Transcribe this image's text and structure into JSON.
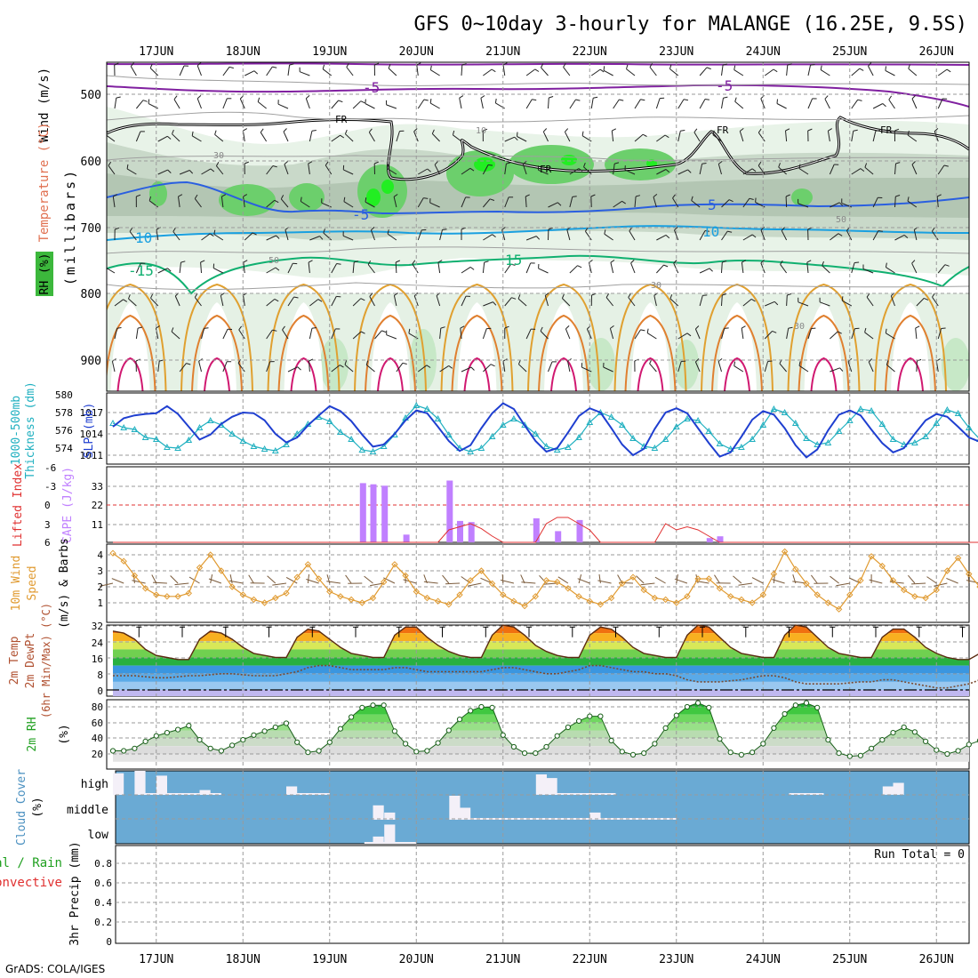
{
  "title": "GFS 0~10day 3-hourly for MALANGE (16.25E, 9.5S)",
  "footer": "GrADS: COLA/IGES",
  "days": [
    "17JUN",
    "18JUN",
    "19JUN",
    "20JUN",
    "21JUN",
    "22JUN",
    "23JUN",
    "24JUN",
    "25JUN",
    "26JUN"
  ],
  "colors": {
    "cape": "#c080ff",
    "li": "#e03030",
    "slp": "#1f3fd0",
    "thick": "#20b0c0",
    "wind10": "#e09a30",
    "rh2m": "#20a020",
    "cloud": "#6aaad4",
    "temp_label": "#e07050",
    "purple": "#8020a0"
  },
  "panels": {
    "upper": {
      "ylabel_wind": "Wind (m/s)",
      "ylabel_temp": "Temperature (°C)",
      "ylabel_rh": "RH (%)",
      "ylabel_p": "(millibars)",
      "p_ticks": [
        "500",
        "600",
        "700",
        "800",
        "900"
      ],
      "contour_labels": [
        "-5",
        "-5",
        "FR",
        "FR",
        "FR",
        "FR",
        "-5",
        "5",
        "10",
        "10",
        "-15",
        "15",
        "10",
        "30",
        "50",
        "50",
        "30",
        "30"
      ]
    },
    "slp": {
      "ylabel1": "1000-500mb",
      "ylabel2": "Thickness (dm)",
      "ylabel3": "SLP (mb)",
      "left_ticks": [
        "580",
        "578",
        "576",
        "574"
      ],
      "right_ticks": [
        "1017",
        "1014",
        "1011"
      ]
    },
    "cape": {
      "ylabel1": "Lifted Index",
      "ylabel2": "CAPE (J/kg)",
      "left_ticks": [
        "-6",
        "-3",
        "0",
        "3",
        "6"
      ],
      "right_ticks": [
        "33",
        "22",
        "11"
      ]
    },
    "wind10": {
      "ylabel1": "10m Wind",
      "ylabel2": "Speed",
      "ylabel3": "(m/s) & Barbs",
      "ticks": [
        "4",
        "3",
        "2",
        "1"
      ]
    },
    "temp": {
      "ylabel1": "2m Temp",
      "ylabel2": "2m DewPt",
      "ylabel3": "(6hr Min/Max) (°C)",
      "ticks": [
        "32",
        "24",
        "16",
        "8",
        "0"
      ]
    },
    "rh": {
      "ylabel1": "2m RH",
      "ylabel2": "(%)",
      "ticks": [
        "80",
        "60",
        "40",
        "20"
      ]
    },
    "cloud": {
      "ylabel1": "Cloud Cover",
      "ylabel2": "(%)",
      "levels": [
        "high",
        "middle",
        "low"
      ]
    },
    "precip": {
      "ylabel1": "Total / Rain",
      "ylabel2": "Convective",
      "ylabel3": "3hr Precip (mm)",
      "ticks": [
        "0.8",
        "0.6",
        "0.4",
        "0.2",
        "0"
      ],
      "run_total": "Run Total = 0"
    }
  },
  "chart_data": [
    {
      "type": "line",
      "name": "SLP and 1000-500mb thickness",
      "x_unit": "days from 16JUN 12Z",
      "series": [
        {
          "name": "SLP (mb)",
          "y_axis": "right",
          "values": [
            1015.0,
            1016.2,
            1016.6,
            1016.8,
            1016.9,
            1017.9,
            1016.8,
            1015.0,
            1013.2,
            1013.9,
            1015.4,
            1016.4,
            1017.0,
            1016.9,
            1015.9,
            1014.0,
            1012.8,
            1013.5,
            1015.2,
            1016.6,
            1017.9,
            1017.2,
            1015.8,
            1013.9,
            1012.2,
            1012.5,
            1014.0,
            1015.9,
            1017.3,
            1016.9,
            1015.0,
            1013.0,
            1011.6,
            1012.4,
            1014.8,
            1016.9,
            1018.3,
            1017.5,
            1015.2,
            1013.0,
            1011.5,
            1012.0,
            1014.2,
            1016.5,
            1017.6,
            1017.0,
            1014.8,
            1012.5,
            1011.0,
            1011.9,
            1014.7,
            1017.0,
            1017.6,
            1016.9,
            1014.8,
            1012.7,
            1010.8,
            1011.4,
            1013.6,
            1016.0,
            1017.2,
            1016.7,
            1014.8,
            1012.4,
            1010.7,
            1011.8,
            1014.5,
            1016.7,
            1017.3,
            1016.6,
            1014.6,
            1012.7,
            1011.4,
            1012.0,
            1014.0,
            1015.9,
            1016.8,
            1016.4,
            1015.0,
            1013.5,
            1012.9,
            1014.2,
            1015.8,
            1016.9,
            1017.8
          ]
        },
        {
          "name": "1000-500mb Thickness (dm)",
          "y_axis": "left",
          "values": [
            576.8,
            576.3,
            576.1,
            575.2,
            575.0,
            574.1,
            574.0,
            574.9,
            576.3,
            577.1,
            576.6,
            575.6,
            574.8,
            574.2,
            573.9,
            573.7,
            574.4,
            575.6,
            576.7,
            577.5,
            577.0,
            575.8,
            575.0,
            573.8,
            573.6,
            574.2,
            575.5,
            577.4,
            578.8,
            578.4,
            577.3,
            575.5,
            574.0,
            573.6,
            574.0,
            575.3,
            576.6,
            577.3,
            576.6,
            575.6,
            574.2,
            573.8,
            574.1,
            575.2,
            576.9,
            578.0,
            577.5,
            576.6,
            575.1,
            574.2,
            574.0,
            575.0,
            576.4,
            577.3,
            577.1,
            575.9,
            574.5,
            573.9,
            574.1,
            575.0,
            576.6,
            578.4,
            578.0,
            576.8,
            575.1,
            574.4,
            574.6,
            575.9,
            577.1,
            578.4,
            578.2,
            576.7,
            575.0,
            574.4,
            574.6,
            575.3,
            576.8,
            578.3,
            577.9,
            576.3,
            575.0,
            574.1,
            573.4,
            574.0,
            575.0
          ]
        }
      ]
    },
    {
      "type": "bar",
      "name": "CAPE and Lifted Index",
      "x_unit": "days from 16JUN 12Z",
      "cape_bars": [
        {
          "x": 2.88,
          "value": 34.5
        },
        {
          "x": 3.0,
          "value": 33.8
        },
        {
          "x": 3.13,
          "value": 33.0
        },
        {
          "x": 3.38,
          "value": 4.5
        },
        {
          "x": 3.88,
          "value": 36.0
        },
        {
          "x": 4.0,
          "value": 12.5
        },
        {
          "x": 4.13,
          "value": 11.8
        },
        {
          "x": 4.88,
          "value": 14.0
        },
        {
          "x": 5.13,
          "value": 6.5
        },
        {
          "x": 5.38,
          "value": 13.0
        },
        {
          "x": 6.88,
          "value": 2.5
        },
        {
          "x": 7.0,
          "value": 3.5
        }
      ],
      "li_values": [
        6,
        6,
        6,
        6,
        6,
        6,
        6,
        6,
        6,
        6,
        6,
        6,
        6,
        6,
        6,
        6,
        6,
        6,
        6,
        6,
        6,
        6,
        6,
        6,
        6,
        6,
        6,
        6,
        6,
        6,
        6,
        4,
        3.5,
        3,
        3.8,
        5,
        6,
        6,
        6,
        6,
        3,
        2,
        2,
        3,
        4,
        6,
        6,
        6,
        6,
        6,
        6,
        3,
        4,
        3.5,
        4,
        5,
        6,
        6,
        6,
        6,
        6,
        6,
        6,
        6,
        6,
        6,
        6,
        6,
        6,
        6,
        6,
        6,
        6,
        6,
        6,
        6,
        6,
        6,
        6,
        6,
        6,
        6,
        6,
        6,
        6
      ],
      "ylim_cape": [
        0,
        44
      ],
      "ylim_li": [
        6,
        -6
      ]
    },
    {
      "type": "line",
      "name": "10m wind speed",
      "ylim": [
        0.3,
        4.7
      ],
      "values": [
        4.1,
        3.6,
        2.7,
        1.9,
        1.5,
        1.4,
        1.4,
        1.6,
        3.2,
        4.0,
        3.0,
        2.0,
        1.5,
        1.2,
        1.0,
        1.3,
        1.6,
        2.6,
        3.4,
        2.5,
        1.7,
        1.4,
        1.2,
        1.0,
        1.3,
        2.3,
        3.4,
        2.7,
        1.7,
        1.3,
        1.1,
        0.9,
        1.5,
        2.4,
        3.0,
        2.2,
        1.5,
        1.1,
        0.8,
        1.4,
        2.4,
        2.3,
        1.9,
        1.4,
        1.1,
        0.9,
        1.3,
        2.2,
        2.6,
        1.8,
        1.3,
        1.2,
        1.0,
        1.4,
        2.5,
        2.5,
        1.9,
        1.4,
        1.2,
        1.0,
        1.5,
        2.8,
        4.2,
        3.1,
        2.2,
        1.5,
        1.0,
        0.6,
        1.5,
        2.4,
        3.9,
        3.3,
        2.4,
        1.8,
        1.4,
        1.3,
        1.8,
        3.0,
        3.8,
        2.8,
        2.0,
        1.6,
        1.3,
        1.0,
        1.4
      ]
    },
    {
      "type": "area",
      "name": "2m temperature and dewpoint",
      "ylim": [
        0,
        34
      ],
      "temp_values": [
        29,
        28,
        25,
        20,
        17,
        16,
        15,
        15,
        25,
        29,
        28,
        25,
        21,
        18,
        17,
        16,
        16,
        26,
        30,
        29,
        25,
        21,
        18,
        17,
        16,
        16,
        27,
        31,
        31,
        26,
        22,
        19,
        17,
        16,
        16,
        27,
        32,
        31,
        27,
        22,
        19,
        17,
        16,
        16,
        27,
        31,
        30,
        26,
        21,
        18,
        17,
        16,
        16,
        27,
        32,
        31,
        26,
        21,
        18,
        17,
        16,
        16,
        27,
        32,
        31,
        26,
        21,
        18,
        17,
        16,
        16,
        26,
        30,
        30,
        26,
        21,
        18,
        16,
        15,
        15,
        18,
        17,
        14,
        13,
        12
      ],
      "dewpoint_values": [
        7,
        7,
        7,
        6.5,
        6,
        6,
        6.5,
        7,
        7,
        7.5,
        8,
        8,
        7.5,
        7,
        7,
        7,
        8,
        9,
        11,
        12,
        12,
        11,
        10,
        10,
        10,
        10,
        11,
        11,
        10,
        9,
        9,
        9,
        9,
        9,
        9,
        10,
        11,
        11,
        10,
        9,
        8,
        8,
        9,
        10,
        12,
        12,
        11,
        10,
        9,
        9,
        8,
        8,
        7,
        5,
        4,
        4,
        4,
        4.5,
        5,
        6,
        7,
        7,
        6,
        4,
        3,
        3,
        3,
        3,
        3.5,
        4,
        4,
        5,
        5,
        4,
        3,
        2,
        1,
        1,
        2,
        3,
        5,
        7,
        10,
        13,
        14
      ]
    },
    {
      "type": "area",
      "name": "2m relative humidity",
      "ylim": [
        8,
        90
      ],
      "values": [
        24,
        24,
        27,
        36,
        43,
        47,
        51,
        56,
        38,
        27,
        24,
        31,
        38,
        44,
        49,
        54,
        59,
        35,
        22,
        24,
        35,
        52,
        67,
        79,
        82,
        82,
        49,
        33,
        23,
        24,
        34,
        50,
        64,
        75,
        80,
        79,
        44,
        29,
        21,
        21,
        29,
        43,
        54,
        62,
        68,
        68,
        37,
        23,
        19,
        21,
        33,
        53,
        69,
        80,
        85,
        79,
        39,
        22,
        19,
        22,
        33,
        53,
        71,
        82,
        85,
        79,
        38,
        21,
        17,
        18,
        27,
        38,
        47,
        54,
        48,
        36,
        25,
        20,
        24,
        32,
        37,
        38,
        33,
        23,
        16
      ]
    },
    {
      "type": "table",
      "name": "cloud cover",
      "levels": [
        "high",
        "middle",
        "low"
      ],
      "note": "white bars indicate cloud fraction at times noted; blue background = clear",
      "high_events": [
        {
          "day": 0.0,
          "frac": 0.9
        },
        {
          "day": 0.25,
          "frac": 1.0
        },
        {
          "day": 0.5,
          "frac": 0.8
        },
        {
          "day": 1.0,
          "frac": 0.2
        },
        {
          "day": 2.0,
          "frac": 0.35
        },
        {
          "day": 4.88,
          "frac": 0.85
        },
        {
          "day": 5.0,
          "frac": 0.7
        },
        {
          "day": 8.88,
          "frac": 0.35
        },
        {
          "day": 9.0,
          "frac": 0.5
        }
      ],
      "middle_events": [
        {
          "day": 3.0,
          "frac": 0.6
        },
        {
          "day": 3.13,
          "frac": 0.3
        },
        {
          "day": 3.88,
          "frac": 1.0
        },
        {
          "day": 4.0,
          "frac": 0.5
        },
        {
          "day": 5.5,
          "frac": 0.3
        }
      ],
      "low_events": [
        {
          "day": 3.0,
          "frac": 0.3
        },
        {
          "day": 3.13,
          "frac": 0.8
        }
      ]
    },
    {
      "type": "bar",
      "name": "3hr precipitation",
      "ylim": [
        0,
        1
      ],
      "values": []
    }
  ]
}
